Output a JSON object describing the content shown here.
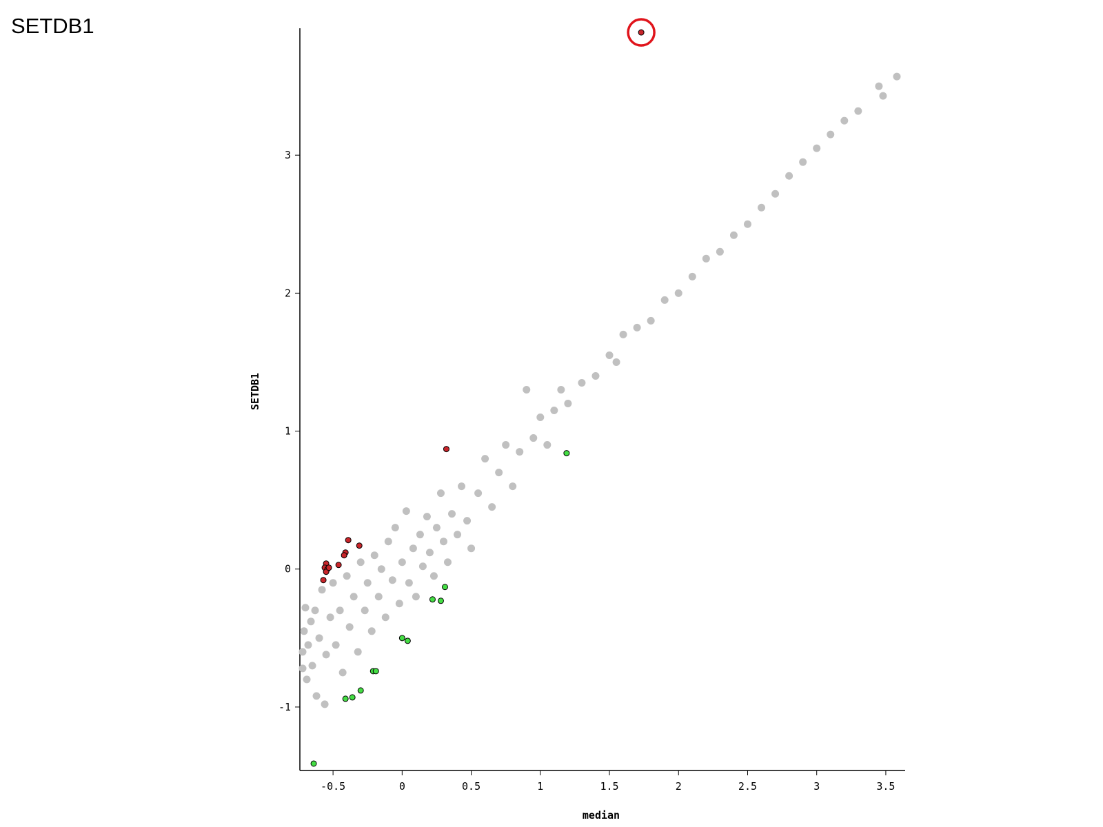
{
  "page_title": "SETDB1",
  "chart_data": {
    "type": "scatter",
    "x_label": "median",
    "y_label": "SETDB1",
    "xlim": [
      -0.74,
      3.64
    ],
    "ylim": [
      -1.46,
      3.92
    ],
    "xticks": [
      -0.5,
      0,
      0.5,
      1,
      1.5,
      2,
      2.5,
      3,
      3.5
    ],
    "yticks": [
      -1,
      0,
      1,
      2,
      3
    ],
    "grid": false,
    "series": [
      {
        "color": "#c0c0c0",
        "x": [
          -0.72,
          -0.72,
          -0.71,
          -0.7,
          -0.69,
          -0.68,
          -0.66,
          -0.65,
          -0.63,
          -0.62,
          -0.6,
          -0.58,
          -0.56,
          -0.55,
          -0.52,
          -0.5,
          -0.48,
          -0.45,
          -0.43,
          -0.4,
          -0.38,
          -0.35,
          -0.32,
          -0.3,
          -0.27,
          -0.25,
          -0.22,
          -0.2,
          -0.17,
          -0.15,
          -0.12,
          -0.1,
          -0.07,
          -0.05,
          -0.02,
          0.0,
          0.03,
          0.05,
          0.08,
          0.1,
          0.13,
          0.15,
          0.18,
          0.2,
          0.23,
          0.25,
          0.28,
          0.3,
          0.33,
          0.36,
          0.4,
          0.43,
          0.47,
          0.5,
          0.55,
          0.6,
          0.65,
          0.7,
          0.75,
          0.8,
          0.85,
          0.9,
          0.95,
          1.0,
          1.05,
          1.1,
          1.15,
          1.2,
          1.3,
          1.4,
          1.5,
          1.55,
          1.6,
          1.7,
          1.8,
          1.9,
          2.0,
          2.1,
          2.2,
          2.3,
          2.4,
          2.5,
          2.6,
          2.7,
          2.8,
          2.9,
          3.0,
          3.1,
          3.2,
          3.3,
          3.45,
          3.48,
          3.58
        ],
        "values": [
          -0.6,
          -0.72,
          -0.45,
          -0.28,
          -0.8,
          -0.55,
          -0.38,
          -0.7,
          -0.3,
          -0.92,
          -0.5,
          -0.15,
          -0.98,
          -0.62,
          -0.35,
          -0.1,
          -0.55,
          -0.3,
          -0.75,
          -0.05,
          -0.42,
          -0.2,
          -0.6,
          0.05,
          -0.3,
          -0.1,
          -0.45,
          0.1,
          -0.2,
          0.0,
          -0.35,
          0.2,
          -0.08,
          0.3,
          -0.25,
          0.05,
          0.42,
          -0.1,
          0.15,
          -0.2,
          0.25,
          0.02,
          0.38,
          0.12,
          -0.05,
          0.3,
          0.55,
          0.2,
          0.05,
          0.4,
          0.25,
          0.6,
          0.35,
          0.15,
          0.55,
          0.8,
          0.45,
          0.7,
          0.9,
          0.6,
          0.85,
          1.3,
          0.95,
          1.1,
          0.9,
          1.15,
          1.3,
          1.2,
          1.35,
          1.4,
          1.55,
          1.5,
          1.7,
          1.75,
          1.8,
          1.95,
          2.0,
          2.12,
          2.25,
          2.3,
          2.42,
          2.5,
          2.62,
          2.72,
          2.85,
          2.95,
          3.05,
          3.15,
          3.25,
          3.32,
          3.5,
          3.43,
          3.57
        ]
      },
      {
        "color": "#c8252a",
        "edge_color": "#000000",
        "x": [
          1.73,
          0.32,
          -0.39,
          -0.41,
          -0.42,
          -0.31,
          -0.46,
          -0.55,
          -0.56,
          -0.54,
          -0.55,
          -0.57,
          -0.53
        ],
        "values": [
          3.89,
          0.87,
          0.21,
          0.12,
          0.1,
          0.17,
          0.03,
          0.04,
          0.01,
          0.0,
          -0.02,
          -0.08,
          0.01
        ]
      },
      {
        "color": "#44dd44",
        "edge_color": "#000000",
        "x": [
          1.19,
          0.31,
          0.22,
          0.28,
          0.0,
          0.04,
          -0.21,
          -0.19,
          -0.3,
          -0.36,
          -0.41,
          -0.64
        ],
        "values": [
          0.84,
          -0.13,
          -0.22,
          -0.23,
          -0.5,
          -0.52,
          -0.74,
          -0.74,
          -0.88,
          -0.93,
          -0.94,
          -1.41
        ]
      }
    ]
  }
}
